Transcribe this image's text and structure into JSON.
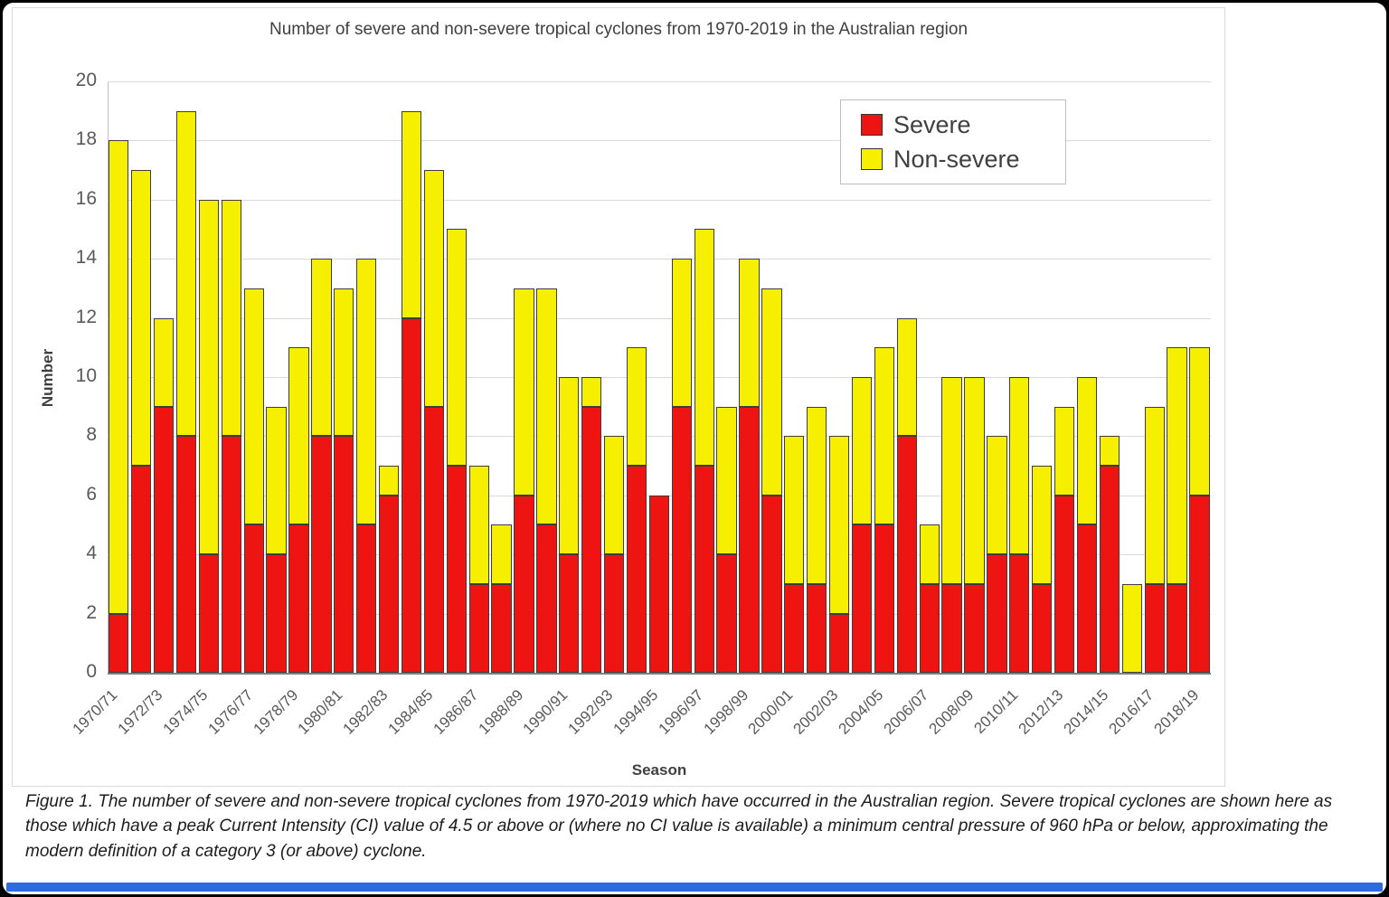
{
  "frame": {
    "panel_background": "#ffffff",
    "border_color": "#000000",
    "bottom_bar_color": "#2e6bdb"
  },
  "chart_data": {
    "type": "bar",
    "stacked": true,
    "title": "Number of severe and non-severe tropical cyclones from 1970-2019 in the Australian region",
    "xlabel": "Season",
    "ylabel": "Number",
    "ylim": [
      0,
      20
    ],
    "ytick_step": 2,
    "yticks": [
      0,
      2,
      4,
      6,
      8,
      10,
      12,
      14,
      16,
      18,
      20
    ],
    "grid": "horizontal",
    "legend_position": "top-right-inside",
    "legend": [
      {
        "label": "Severe",
        "color": "#ee1411"
      },
      {
        "label": "Non-severe",
        "color": "#f7ef00"
      }
    ],
    "categories": [
      "1970/71",
      "1971/72",
      "1972/73",
      "1973/74",
      "1974/75",
      "1975/76",
      "1976/77",
      "1977/78",
      "1978/79",
      "1979/80",
      "1980/81",
      "1981/82",
      "1982/83",
      "1983/84",
      "1984/85",
      "1985/86",
      "1986/87",
      "1987/88",
      "1988/89",
      "1989/90",
      "1990/91",
      "1991/92",
      "1992/93",
      "1993/94",
      "1994/95",
      "1995/96",
      "1996/97",
      "1997/98",
      "1998/99",
      "1999/00",
      "2000/01",
      "2001/02",
      "2002/03",
      "2003/04",
      "2004/05",
      "2005/06",
      "2006/07",
      "2007/08",
      "2008/09",
      "2009/10",
      "2010/11",
      "2011/12",
      "2012/13",
      "2013/14",
      "2014/15",
      "2015/16",
      "2016/17",
      "2017/18",
      "2018/19"
    ],
    "xtick_labels": [
      "1970/71",
      "1972/73",
      "1974/75",
      "1976/77",
      "1978/79",
      "1980/81",
      "1982/83",
      "1984/85",
      "1986/87",
      "1988/89",
      "1990/91",
      "1992/93",
      "1994/95",
      "1996/97",
      "1998/99",
      "2000/01",
      "2002/03",
      "2004/05",
      "2006/07",
      "2008/09",
      "2010/11",
      "2012/13",
      "2014/15",
      "2016/17",
      "2018/19"
    ],
    "series": [
      {
        "name": "Severe",
        "color": "#ee1411",
        "values": [
          2,
          7,
          9,
          8,
          4,
          8,
          5,
          4,
          5,
          8,
          8,
          5,
          6,
          12,
          9,
          7,
          3,
          3,
          6,
          5,
          4,
          9,
          4,
          7,
          6,
          9,
          7,
          4,
          9,
          6,
          3,
          3,
          2,
          5,
          5,
          8,
          3,
          3,
          3,
          4,
          4,
          3,
          6,
          5,
          7,
          0,
          3,
          3,
          6
        ]
      },
      {
        "name": "Non-severe",
        "color": "#f7ef00",
        "values": [
          16,
          10,
          3,
          11,
          12,
          8,
          8,
          5,
          6,
          6,
          5,
          9,
          1,
          7,
          8,
          8,
          4,
          2,
          7,
          8,
          6,
          1,
          4,
          4,
          0,
          5,
          8,
          5,
          5,
          7,
          5,
          6,
          6,
          5,
          6,
          4,
          2,
          7,
          7,
          4,
          6,
          4,
          3,
          5,
          1,
          3,
          6,
          8,
          5
        ]
      }
    ]
  },
  "caption": "Figure 1. The number of severe and non-severe tropical cyclones from 1970-2019 which have occurred in the Australian region. Severe tropical cyclones are shown here as those which have a peak Current Intensity (CI) value of 4.5 or above or (where no CI value is available) a minimum central pressure of 960 hPa or below, approximating the modern definition of a category 3 (or above) cyclone."
}
